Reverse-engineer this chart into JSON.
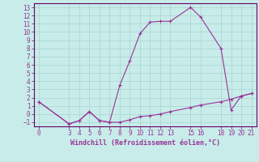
{
  "title": "",
  "xlabel": "Windchill (Refroidissement éolien,°C)",
  "background_color": "#c8ece9",
  "grid_color": "#a8d4d0",
  "line_color": "#993399",
  "spine_color": "#660066",
  "ylim": [
    -1.5,
    13.5
  ],
  "xlim": [
    -0.5,
    21.5
  ],
  "yticks": [
    -1,
    0,
    1,
    2,
    3,
    4,
    5,
    6,
    7,
    8,
    9,
    10,
    11,
    12,
    13
  ],
  "xticks": [
    0,
    3,
    4,
    5,
    6,
    7,
    8,
    9,
    10,
    11,
    12,
    13,
    15,
    16,
    18,
    19,
    20,
    21
  ],
  "series1_x": [
    0,
    3,
    4,
    5,
    6,
    7,
    8,
    9,
    10,
    11,
    12,
    13,
    15,
    16,
    18,
    19,
    20,
    21
  ],
  "series1_y": [
    1.5,
    -1.2,
    -0.8,
    0.3,
    -0.8,
    -1.0,
    -1.0,
    -0.7,
    -0.3,
    -0.2,
    0.0,
    0.3,
    0.8,
    1.1,
    1.5,
    1.8,
    2.2,
    2.5
  ],
  "series2_x": [
    0,
    3,
    4,
    5,
    6,
    7,
    8,
    9,
    10,
    11,
    12,
    13,
    15,
    16,
    18,
    19,
    20,
    21
  ],
  "series2_y": [
    1.5,
    -1.2,
    -0.8,
    0.3,
    -0.8,
    -1.0,
    3.5,
    6.5,
    9.8,
    11.2,
    11.3,
    11.3,
    13.0,
    11.8,
    8.0,
    0.5,
    2.2,
    2.5
  ]
}
